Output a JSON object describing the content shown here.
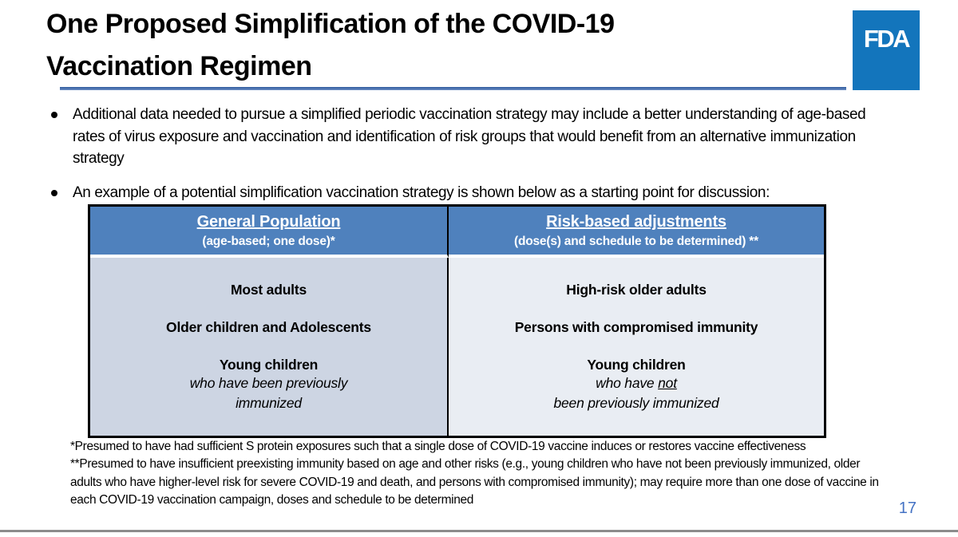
{
  "slide": {
    "title_line1": "One Proposed Simplification of the COVID-19",
    "title_line2": "Vaccination Regimen",
    "fda_logo_text": "FDA",
    "bullets": [
      "Additional data needed to pursue a simplified periodic vaccination strategy may include a better understanding of age-based rates of virus exposure and vaccination and identification of risk groups that would benefit from an alternative immunization strategy",
      "An example of a potential simplification vaccination strategy is shown below as a starting point for discussion:"
    ],
    "table": {
      "columns": [
        {
          "header": "General Population",
          "subheader": "(age-based; one dose)*",
          "entries": [
            "Most adults",
            "Older children and Adolescents",
            "Young children"
          ],
          "note_line1": "who have been previously",
          "note_line2": "immunized"
        },
        {
          "header": "Risk-based adjustments",
          "subheader": "(dose(s) and schedule to be determined) **",
          "entries": [
            "High-risk older adults",
            "Persons with compromised immunity",
            "Young children"
          ],
          "note_pre": "who have ",
          "note_underlined": "not",
          "note_line2": "been previously immunized"
        }
      ]
    },
    "footnotes": [
      "*Presumed to have had sufficient S protein exposures such that a single dose of COVID-19 vaccine induces or restores vaccine effectiveness",
      "**Presumed to have insufficient preexisting immunity based on age and other risks (e.g., young children who have not been previously immunized, older adults who have higher-level risk for severe COVID-19 and death, and persons with compromised immunity); may require more than one dose of vaccine in each COVID-19 vaccination campaign, doses and schedule to be determined"
    ],
    "page_number": "17",
    "colors": {
      "table_header_blue": "#4F81BD",
      "left_cell_bg": "#CDD5E3",
      "right_cell_bg": "#E9EDF3",
      "fda_logo_blue": "#1375BC",
      "page_number_blue": "#4472C4",
      "title_rule_blue": "#2F5A9D",
      "bottom_divider_gray": "#8C8C8C"
    }
  }
}
